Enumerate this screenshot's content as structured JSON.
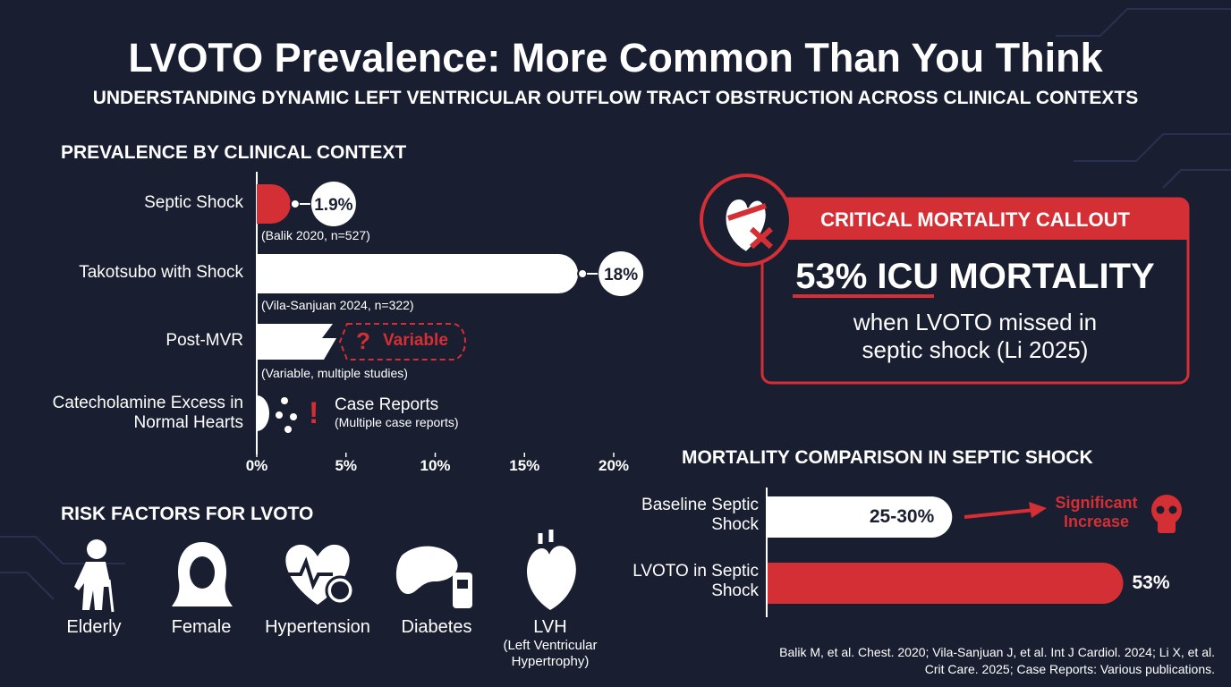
{
  "header": {
    "title": "LVOTO Prevalence: More Common Than You Think",
    "subtitle": "UNDERSTANDING DYNAMIC LEFT VENTRICULAR OUTFLOW TRACT OBSTRUCTION ACROSS CLINICAL CONTEXTS"
  },
  "chart_data": [
    {
      "type": "bar",
      "orientation": "horizontal",
      "title": "PREVALENCE BY CLINICAL CONTEXT",
      "categories": [
        "Septic Shock",
        "Takotsubo with Shock",
        "Post-MVR",
        "Catecholamine Excess in Normal Hearts"
      ],
      "values": [
        1.9,
        18,
        null,
        null
      ],
      "value_labels": [
        "1.9%",
        "18%",
        null,
        null
      ],
      "row_notes": [
        null,
        null,
        "Variable",
        "Case Reports"
      ],
      "sources": [
        "(Balik 2020, n=527)",
        "(Vila-Sanjuan 2024, n=322)",
        "(Variable, multiple studies)",
        "(Multiple case reports)"
      ],
      "color": "#d32f34",
      "xlim": [
        0,
        20
      ],
      "xticks": [
        {
          "value": 0,
          "label": "0%"
        },
        {
          "value": 5,
          "label": "5%"
        },
        {
          "value": 10,
          "label": "10%"
        },
        {
          "value": 15,
          "label": "15%"
        },
        {
          "value": 20,
          "label": "20%"
        }
      ]
    },
    {
      "type": "bar",
      "orientation": "horizontal",
      "title": "MORTALITY COMPARISON IN SEPTIC SHOCK",
      "categories": [
        "Baseline Septic Shock",
        "LVOTO in Septic Shock"
      ],
      "values": [
        27.5,
        53
      ],
      "value_labels": [
        "25-30%",
        "53%"
      ],
      "colors": [
        "#ffffff",
        "#d32f34"
      ],
      "annotation": "Significant Increase"
    }
  ],
  "callout": {
    "heading": "CRITICAL MORTALITY CALLOUT",
    "headline": "53% ICU MORTALITY",
    "body": "when LVOTO missed in septic shock (Li 2025)"
  },
  "risk_factors": {
    "title": "RISK FACTORS FOR LVOTO",
    "items": [
      {
        "label": "Elderly"
      },
      {
        "label": "Female"
      },
      {
        "label": "Hypertension"
      },
      {
        "label": "Diabetes"
      },
      {
        "label": "LVH",
        "detail": "(Left Ventricular Hypertrophy)"
      }
    ]
  },
  "references": "Balik M, et al. Chest. 2020; Vila-Sanjuan J, et al. Int J Cardiol. 2024; Li X, et al. Crit Care. 2025; Case Reports: Various publications."
}
